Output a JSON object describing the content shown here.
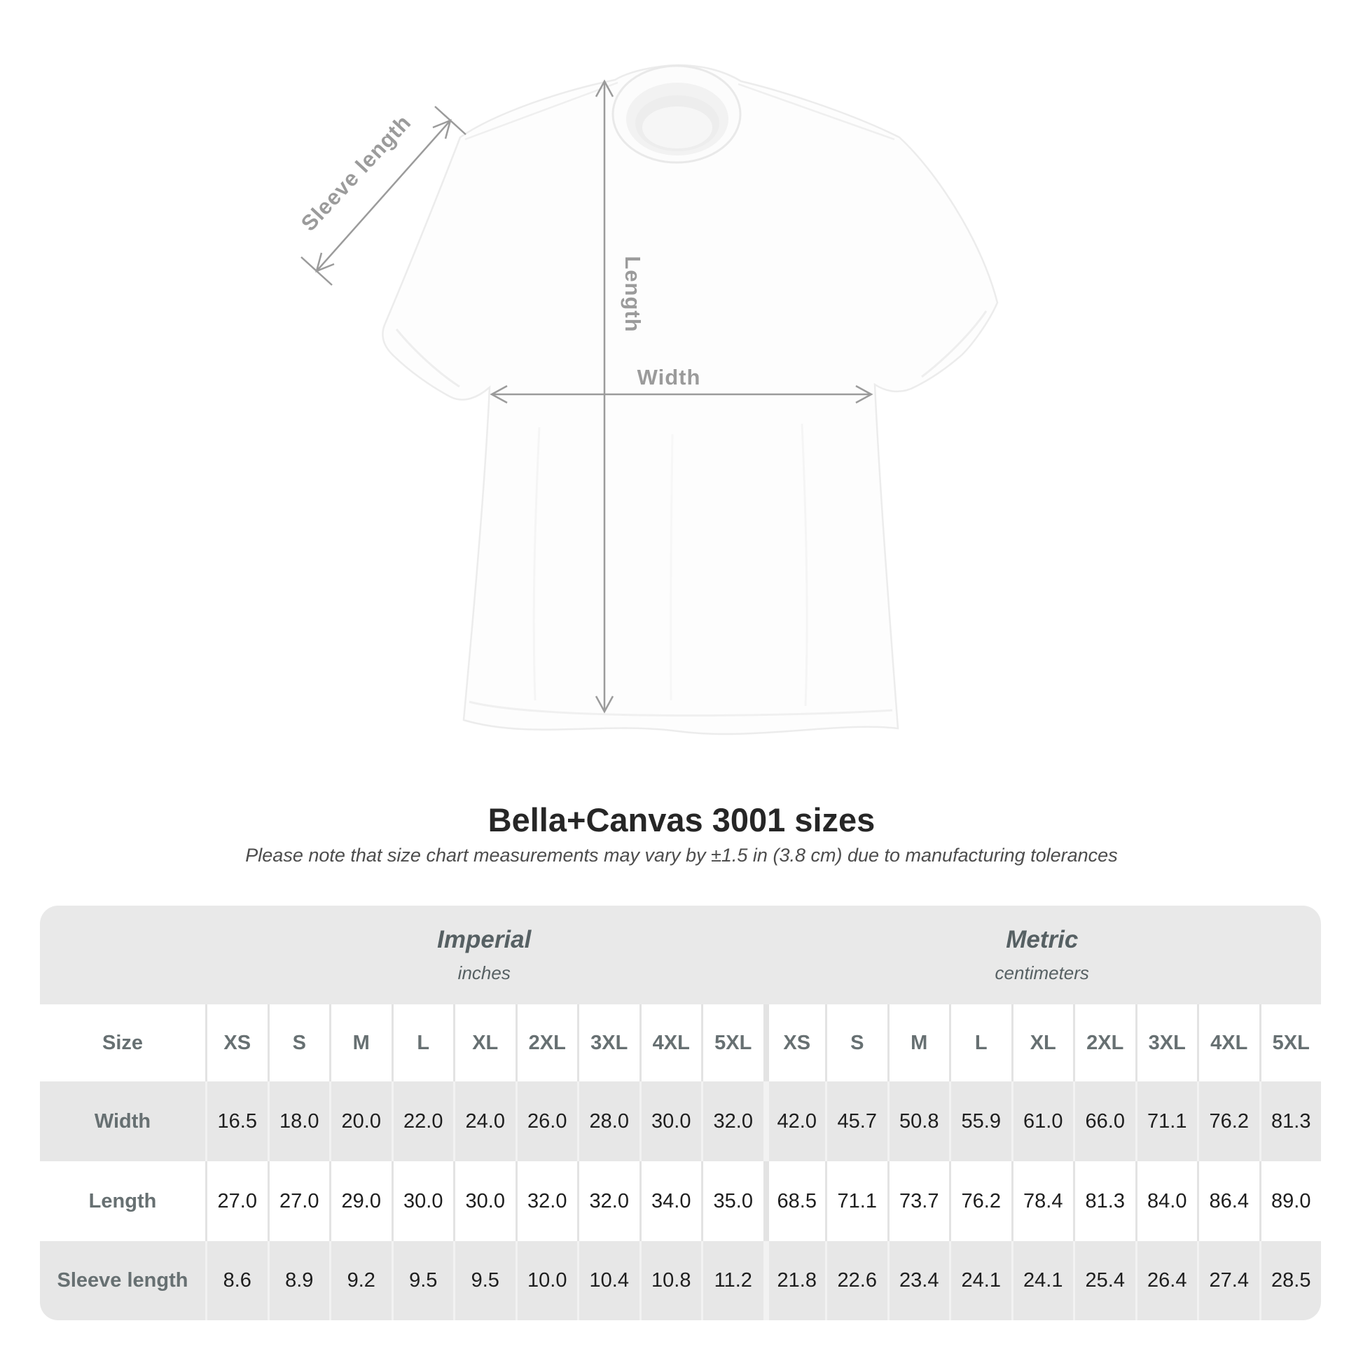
{
  "diagram": {
    "sleeve_label": "Sleeve length",
    "length_label": "Length",
    "width_label": "Width"
  },
  "heading": {
    "title": "Bella+Canvas 3001 sizes",
    "subtitle": "Please note that size chart measurements may vary by ±1.5 in (3.8 cm) due to manufacturing tolerances"
  },
  "size_table": {
    "corner_label": "Size",
    "unit_groups": [
      {
        "name": "Imperial",
        "unit": "inches"
      },
      {
        "name": "Metric",
        "unit": "centimeters"
      }
    ],
    "columns": [
      "XS",
      "S",
      "M",
      "L",
      "XL",
      "2XL",
      "3XL",
      "4XL",
      "5XL",
      "XS",
      "S",
      "M",
      "L",
      "XL",
      "2XL",
      "3XL",
      "4XL",
      "5XL"
    ],
    "rows": [
      {
        "label": "Width",
        "values": [
          "16.5",
          "18.0",
          "20.0",
          "22.0",
          "24.0",
          "26.0",
          "28.0",
          "30.0",
          "32.0",
          "42.0",
          "45.7",
          "50.8",
          "55.9",
          "61.0",
          "66.0",
          "71.1",
          "76.2",
          "81.3"
        ]
      },
      {
        "label": "Length",
        "values": [
          "27.0",
          "27.0",
          "29.0",
          "30.0",
          "30.0",
          "32.0",
          "32.0",
          "34.0",
          "35.0",
          "68.5",
          "71.1",
          "73.7",
          "76.2",
          "78.4",
          "81.3",
          "84.0",
          "86.4",
          "89.0"
        ]
      },
      {
        "label": "Sleeve length",
        "values": [
          "8.6",
          "8.9",
          "9.2",
          "9.5",
          "9.5",
          "10.0",
          "10.4",
          "10.8",
          "11.2",
          "21.8",
          "22.6",
          "23.4",
          "24.1",
          "24.1",
          "25.4",
          "26.4",
          "27.4",
          "28.5"
        ]
      }
    ]
  },
  "colors": {
    "dimension_gray": "#9b9b9b",
    "band_gray": "#e9e9e9",
    "row_gray": "#e7e7e7",
    "header_text": "#677072",
    "value_text": "#1e1e1e",
    "title_text": "#262626"
  }
}
